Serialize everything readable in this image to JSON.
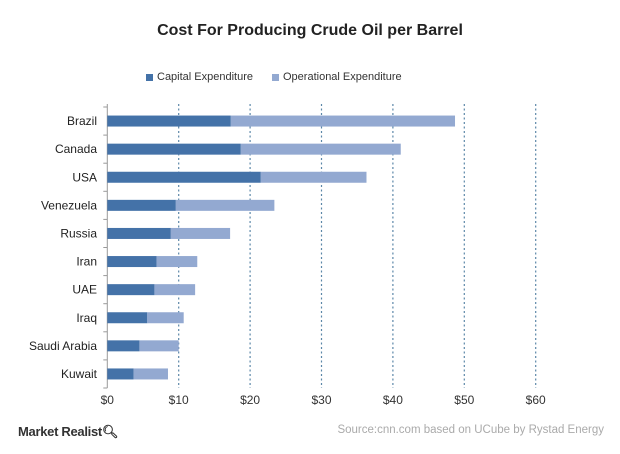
{
  "chart_data": {
    "type": "bar",
    "orientation": "horizontal",
    "stacked": true,
    "title": "Cost For Producing Crude Oil per Barrel",
    "categories": [
      "Brazil",
      "Canada",
      "USA",
      "Venezuela",
      "Russia",
      "Iran",
      "UAE",
      "Iraq",
      "Saudi Arabia",
      "Kuwait"
    ],
    "series": [
      {
        "name": "Capital Expenditure",
        "color": "#4472a8",
        "values": [
          17.3,
          18.7,
          21.5,
          9.6,
          8.9,
          6.9,
          6.6,
          5.6,
          4.5,
          3.7
        ]
      },
      {
        "name": "Operational Expenditure",
        "color": "#93a9d1",
        "values": [
          31.4,
          22.4,
          14.8,
          13.8,
          8.3,
          5.7,
          5.7,
          5.1,
          5.5,
          4.8
        ]
      }
    ],
    "xlim": [
      0,
      60
    ],
    "xticks": [
      0,
      10,
      20,
      30,
      40,
      50,
      60
    ],
    "xtick_labels": [
      "$0",
      "$10",
      "$20",
      "$30",
      "$40",
      "$50",
      "$60"
    ],
    "grid": "vertical dashed",
    "legend_placement": "top",
    "source": "Source:cnn.com based on UCube by Rystad Energy",
    "logo": "Market Realist"
  }
}
